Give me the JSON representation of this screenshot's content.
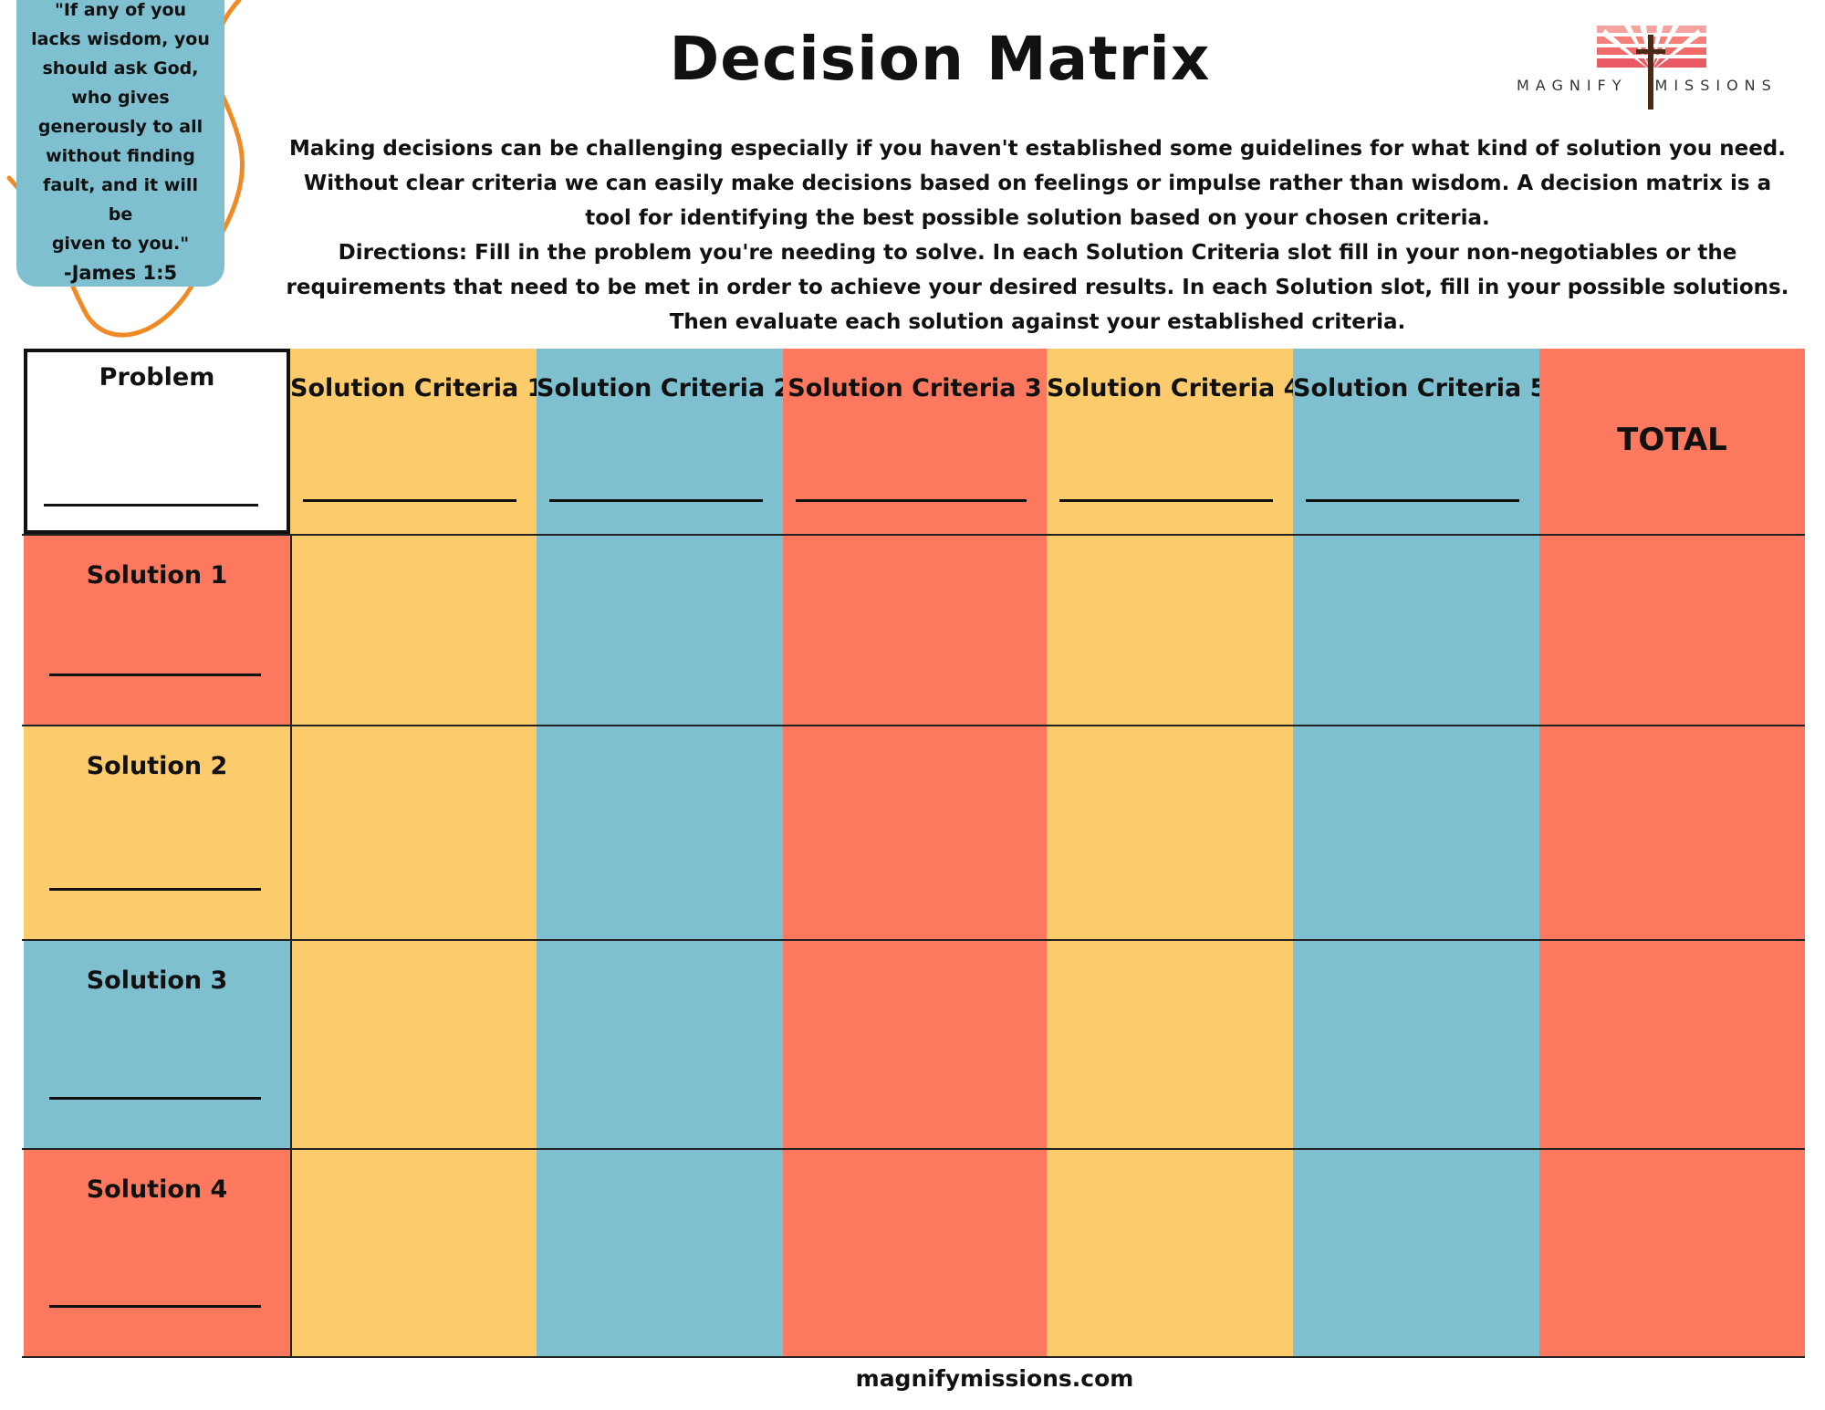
{
  "title": "Decision Matrix",
  "quote": {
    "lines": [
      "\"If any of you",
      "lacks wisdom, you",
      "should ask God,",
      "who gives",
      "generously to all",
      "without finding",
      "fault, and it will be",
      "given to you.\""
    ],
    "reference": "-James 1:5"
  },
  "logo": {
    "word1": "MAGNIFY",
    "word2": "MISSIONS"
  },
  "intro": {
    "paragraph": "Making decisions can be challenging especially if you haven't established some guidelines for what kind of solution you need. Without clear criteria we can easily make decisions based on feelings or impulse rather than wisdom. A decision matrix is a tool for identifying the best possible solution based on your chosen criteria.",
    "directions": "Directions: Fill in the problem you're needing to solve. In each Solution Criteria slot fill in your non-negotiables or the requirements that need to be met in order to achieve your desired results. In each Solution slot, fill in your possible solutions. Then evaluate each solution against your established criteria."
  },
  "matrix": {
    "problem_label": "Problem",
    "criteria": [
      "Solution Criteria 1",
      "Solution Criteria 2",
      "Solution Criteria 3",
      "Solution Criteria 4",
      "Solution Criteria 5"
    ],
    "total_label": "TOTAL",
    "solutions": [
      "Solution 1",
      "Solution 2",
      "Solution 3",
      "Solution 4"
    ],
    "column_colors": [
      "yellow",
      "blue",
      "coral",
      "yellow",
      "blue",
      "coral"
    ],
    "solution_colors": [
      "coral",
      "yellow",
      "blue",
      "coral"
    ]
  },
  "colors": {
    "yellow": "#fbcb6c",
    "blue": "#7fc0d0",
    "coral": "#fc785f",
    "squiggle": "#f08a25"
  },
  "footer": "magnifymissions.com"
}
